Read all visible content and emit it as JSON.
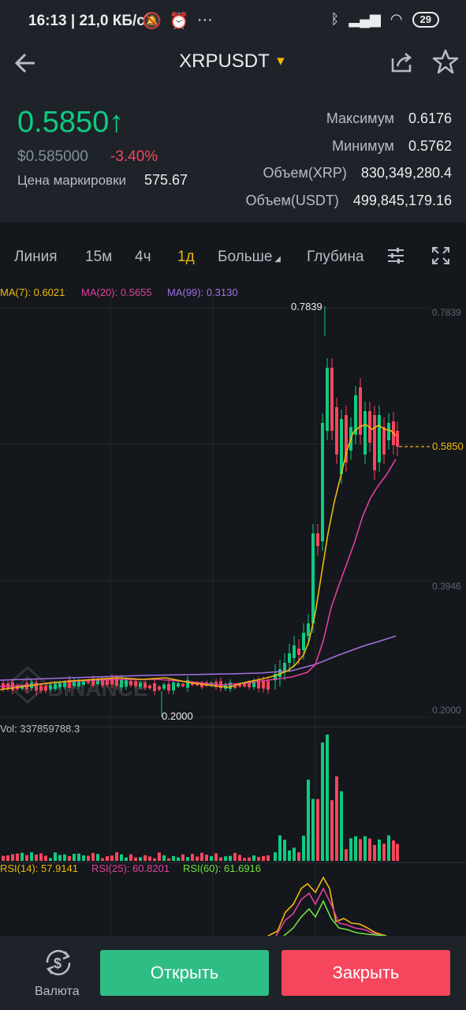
{
  "status_bar": {
    "time": "16:13",
    "speed": "21,0 КБ/с",
    "battery": "29"
  },
  "header": {
    "pair": "XRPUSDT"
  },
  "ticker": {
    "last_price": "0.5850",
    "usd_price": "$0.585000",
    "change_pct": "-3.40%",
    "mark_label": "Цена маркировки",
    "mark_value": "575.67",
    "stats": [
      {
        "label": "Максимум",
        "value": "0.6176"
      },
      {
        "label": "Минимум",
        "value": "0.5762"
      },
      {
        "label": "Объем(XRP)",
        "value": "830,349,280.4"
      },
      {
        "label": "Объем(USDT)",
        "value": "499,845,179.16"
      }
    ]
  },
  "toolbar": {
    "items": [
      "Линия",
      "15м",
      "4ч",
      "1д",
      "Больше",
      "Глубина"
    ],
    "active": "1д"
  },
  "chart_data": {
    "type": "candlestick",
    "ma_legend": [
      {
        "label": "MA(7): 0.6021",
        "color": "#f0b90b"
      },
      {
        "label": "MA(20): 0.5655",
        "color": "#e040a0"
      },
      {
        "label": "MA(99): 0.3130",
        "color": "#a270e0"
      }
    ],
    "y_axis_ticks": [
      "0.7839",
      "0.3946",
      "0.2000"
    ],
    "high_label": "0.7839",
    "low_label": "0.2000",
    "current_price": "0.5850",
    "watermark": "BINANCE",
    "volume_label": "Vol: 337859788.3",
    "rsi_legend": [
      {
        "label": "RSI(14): 57.9141",
        "color": "#f0b90b"
      },
      {
        "label": "RSI(25): 60.8201",
        "color": "#e040a0"
      },
      {
        "label": "RSI(60): 61.6916",
        "color": "#70e040"
      }
    ]
  },
  "bottom_bar": {
    "currency_label": "Валюта",
    "open_label": "Открыть",
    "close_label": "Закрыть"
  }
}
